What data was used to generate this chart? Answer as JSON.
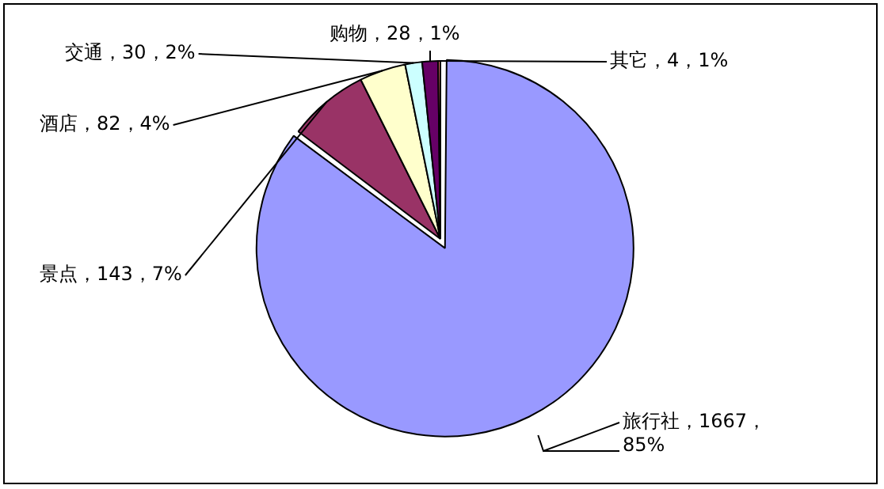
{
  "chart_data": {
    "type": "pie",
    "categories": [
      "旅行社",
      "景点",
      "酒店",
      "交通",
      "购物",
      "其它"
    ],
    "values": [
      1667,
      143,
      82,
      30,
      28,
      4
    ],
    "value_labels": [
      "1667，85%",
      "143，7%",
      "82，4%",
      "30，2%",
      "28，1%",
      "4，1%"
    ],
    "colors": [
      "#9999ff",
      "#993366",
      "#ffffcc",
      "#ccffff",
      "#660066",
      "#ff8080"
    ],
    "legend": false
  }
}
